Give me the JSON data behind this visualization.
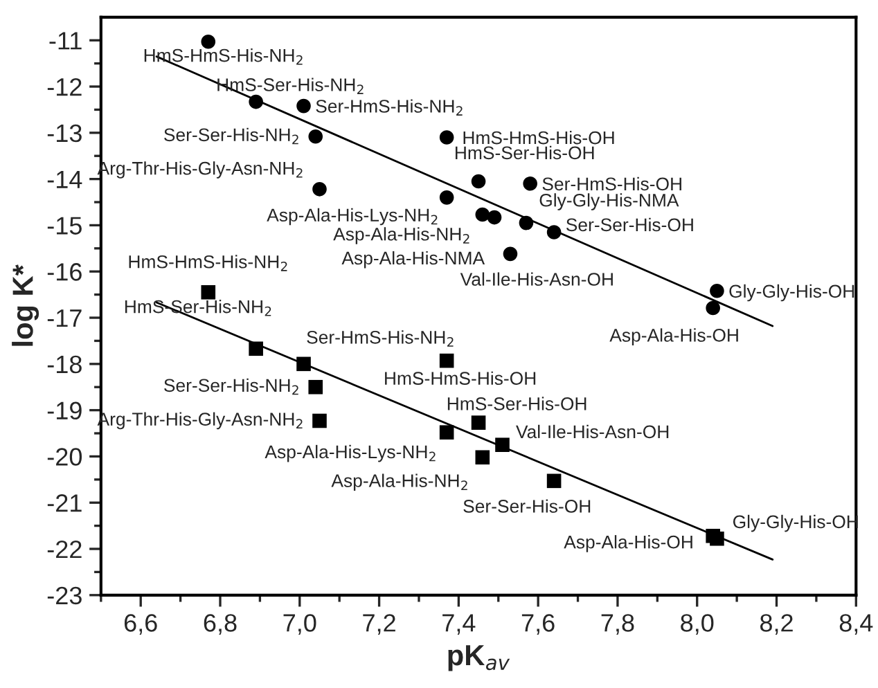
{
  "chart_data": {
    "type": "scatter",
    "xlabel": "pK$_{av}$",
    "ylabel": "log K*",
    "xlim": [
      6.5,
      8.4
    ],
    "ylim": [
      -23,
      -10.5
    ],
    "xticks": [
      {
        "value": 6.5,
        "label": null
      },
      {
        "value": 6.6,
        "label": "6,6"
      },
      {
        "value": 6.7,
        "label": null
      },
      {
        "value": 6.8,
        "label": "6,8"
      },
      {
        "value": 6.9,
        "label": null
      },
      {
        "value": 7.0,
        "label": "7,0"
      },
      {
        "value": 7.1,
        "label": null
      },
      {
        "value": 7.2,
        "label": "7,2"
      },
      {
        "value": 7.3,
        "label": null
      },
      {
        "value": 7.4,
        "label": "7,4"
      },
      {
        "value": 7.5,
        "label": null
      },
      {
        "value": 7.6,
        "label": "7,6"
      },
      {
        "value": 7.7,
        "label": null
      },
      {
        "value": 7.8,
        "label": "7,8"
      },
      {
        "value": 7.9,
        "label": null
      },
      {
        "value": 8.0,
        "label": "8,0"
      },
      {
        "value": 8.1,
        "label": null
      },
      {
        "value": 8.2,
        "label": "8,2"
      },
      {
        "value": 8.3,
        "label": null
      },
      {
        "value": 8.4,
        "label": "8,4"
      }
    ],
    "yticks": [
      -11,
      {
        "value": -11.5,
        "label": null
      },
      -12,
      {
        "value": -12.5,
        "label": null
      },
      -13,
      {
        "value": -13.5,
        "label": null
      },
      -14,
      {
        "value": -14.5,
        "label": null
      },
      -15,
      {
        "value": -15.5,
        "label": null
      },
      -16,
      {
        "value": -16.5,
        "label": null
      },
      -17,
      {
        "value": -17.5,
        "label": null
      },
      -18,
      {
        "value": -18.5,
        "label": null
      },
      -19,
      {
        "value": -19.5,
        "label": null
      },
      -20,
      {
        "value": -20.5,
        "label": null
      },
      -21,
      {
        "value": -21.5,
        "label": null
      },
      -22,
      {
        "value": -22.5,
        "label": null
      },
      -23
    ],
    "grid": false,
    "legend": false,
    "series": [
      {
        "type": "scatter",
        "marker": "circle",
        "color": "#000000",
        "x": [
          6.77,
          6.89,
          7.01,
          7.04,
          7.05,
          7.37,
          7.37,
          7.45,
          7.46,
          7.49,
          7.53,
          7.57,
          7.58,
          7.64,
          8.05,
          8.04
        ],
        "values": [
          -11.03,
          -12.33,
          -12.42,
          -13.08,
          -14.22,
          -13.1,
          -14.4,
          -14.05,
          -14.77,
          -14.83,
          -15.62,
          -14.95,
          -14.1,
          -15.15,
          -16.42,
          -16.79
        ]
      },
      {
        "type": "scatter",
        "marker": "square",
        "color": "#000000",
        "x": [
          6.77,
          6.89,
          7.01,
          7.04,
          7.05,
          7.37,
          7.37,
          7.45,
          7.46,
          7.51,
          7.64,
          8.05,
          8.04
        ],
        "values": [
          -16.45,
          -17.67,
          -18.0,
          -18.5,
          -19.23,
          -17.93,
          -19.48,
          -19.27,
          -20.02,
          -19.75,
          -20.53,
          -21.78,
          -21.72
        ]
      },
      {
        "type": "line",
        "marker": "none",
        "line_style": "solid",
        "color": "#000000",
        "x": [
          6.64,
          8.19
        ],
        "values": [
          -11.35,
          -17.18
        ]
      },
      {
        "type": "line",
        "marker": "none",
        "line_style": "solid",
        "color": "#000000",
        "x": [
          6.64,
          8.19
        ],
        "values": [
          -16.67,
          -22.23
        ]
      }
    ],
    "annotations": [
      "HmS-HmS-His-NH$_{2}$",
      "HmS-Ser-His-NH$_{2}$",
      "Ser-HmS-His-NH$_{2}$",
      "Ser-Ser-His-NH$_{2}$",
      "Arg-Thr-His-Gly-Asn-NH$_{2}$",
      "HmS-HmS-His-OH",
      "Asp-Ala-His-Lys-NH$_{2}$",
      "HmS-Ser-His-OH",
      "Asp-Ala-His-NH$_{2}$",
      "Asp-Ala-His-NMA",
      "Val-Ile-His-Asn-OH",
      "Gly-Gly-His-NMA",
      "Ser-HmS-His-OH",
      "Ser-Ser-His-OH",
      "Gly-Gly-His-OH",
      "Asp-Ala-His-OH",
      "HmS-HmS-His-NH$_{2}$",
      "HmS-Ser-His-NH$_{2}$",
      "Ser-HmS-His-NH$_{2}$",
      "Ser-Ser-His-NH$_{2}$",
      "Arg-Thr-His-Gly-Asn-NH$_{2}$",
      "HmS-HmS-His-OH",
      "Asp-Ala-His-Lys-NH$_{2}$",
      "HmS-Ser-His-OH",
      "Asp-Ala-His-NH$_{2}$",
      "Val-Ile-His-Asn-OH",
      "Ser-Ser-His-OH",
      "Gly-Gly-His-OH",
      "Asp-Ala-His-OH"
    ]
  }
}
